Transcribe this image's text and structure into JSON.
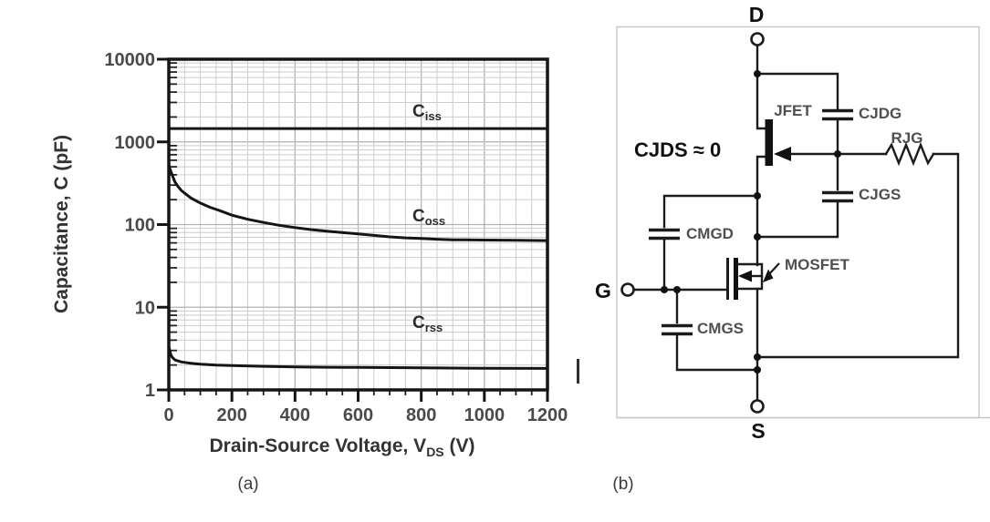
{
  "figure": {
    "panel_a_caption": "(a)",
    "panel_b_caption": "(b)",
    "text_cursor_artifact": "|"
  },
  "chart_data": {
    "type": "line",
    "title": "",
    "xlabel_main": "Drain-Source Voltage, V",
    "xlabel_sub": "DS",
    "xlabel_unit": " (V)",
    "ylabel": "Capacitance, C (pF)",
    "xscale": "linear",
    "yscale": "log",
    "xlim": [
      0,
      1200
    ],
    "ylim": [
      1,
      10000
    ],
    "x_major_ticks": [
      0,
      200,
      400,
      600,
      800,
      1000,
      1200
    ],
    "x_minor_step": 50,
    "y_major_ticks": [
      1,
      10,
      100,
      1000,
      10000
    ],
    "grid": true,
    "legend": "inline-labels",
    "colors": {
      "curve": "#151515",
      "frame": "#151515",
      "grid_minor": "#cccccc",
      "grid_major": "#b3b3b3",
      "tick_text": "#4a4a4a",
      "axis_text": "#333333"
    },
    "series": [
      {
        "name": "Ciss",
        "label_main": "C",
        "label_sub": "iss",
        "label_pos": [
          452,
          128
        ],
        "points": [
          [
            0,
            1450
          ],
          [
            1200,
            1450
          ]
        ]
      },
      {
        "name": "Coss",
        "label_main": "C",
        "label_sub": "oss",
        "label_pos": [
          452,
          243
        ],
        "points": [
          [
            1,
            520
          ],
          [
            3,
            480
          ],
          [
            6,
            445
          ],
          [
            10,
            405
          ],
          [
            15,
            360
          ],
          [
            20,
            325
          ],
          [
            30,
            285
          ],
          [
            40,
            258
          ],
          [
            50,
            240
          ],
          [
            70,
            210
          ],
          [
            100,
            182
          ],
          [
            130,
            162
          ],
          [
            160,
            148
          ],
          [
            200,
            130
          ],
          [
            250,
            116
          ],
          [
            300,
            106
          ],
          [
            350,
            98
          ],
          [
            400,
            92
          ],
          [
            450,
            87
          ],
          [
            500,
            83
          ],
          [
            550,
            80
          ],
          [
            600,
            77
          ],
          [
            650,
            74
          ],
          [
            700,
            71
          ],
          [
            750,
            69
          ],
          [
            800,
            68
          ],
          [
            850,
            66.5
          ],
          [
            900,
            65.5
          ],
          [
            1000,
            65
          ],
          [
            1100,
            64.5
          ],
          [
            1200,
            64
          ]
        ]
      },
      {
        "name": "Crss",
        "label_main": "C",
        "label_sub": "rss",
        "label_pos": [
          452,
          360
        ],
        "points": [
          [
            0,
            3.4
          ],
          [
            3,
            3.0
          ],
          [
            6,
            2.7
          ],
          [
            10,
            2.5
          ],
          [
            20,
            2.3
          ],
          [
            40,
            2.18
          ],
          [
            70,
            2.1
          ],
          [
            100,
            2.05
          ],
          [
            150,
            2.0
          ],
          [
            200,
            1.97
          ],
          [
            300,
            1.93
          ],
          [
            400,
            1.9
          ],
          [
            500,
            1.88
          ],
          [
            600,
            1.87
          ],
          [
            800,
            1.85
          ],
          [
            1000,
            1.83
          ],
          [
            1200,
            1.82
          ]
        ]
      }
    ]
  },
  "circuit": {
    "terminals": {
      "drain": "D",
      "gate": "G",
      "source": "S"
    },
    "note": "CJDS ≈ 0",
    "labels": {
      "jfet": "JFET",
      "mosfet": "MOSFET",
      "cjdg": "CJDG",
      "rjg": "RJG",
      "cjgs": "CJGS",
      "cmgd": "CMGD",
      "cmgs": "CMGS"
    }
  }
}
